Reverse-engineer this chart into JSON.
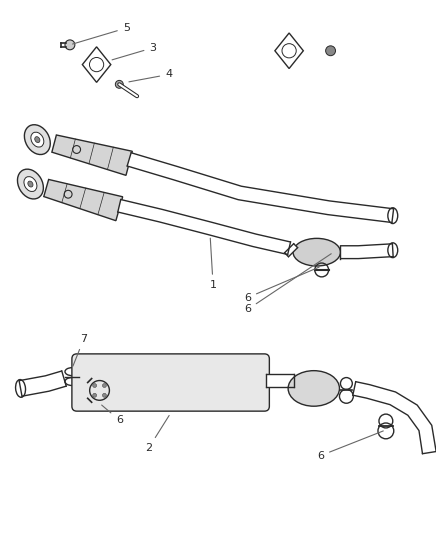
{
  "bg_color": "#ffffff",
  "line_color": "#2a2a2a",
  "lw": 1.0,
  "fig_width": 4.39,
  "fig_height": 5.33,
  "dpi": 100
}
